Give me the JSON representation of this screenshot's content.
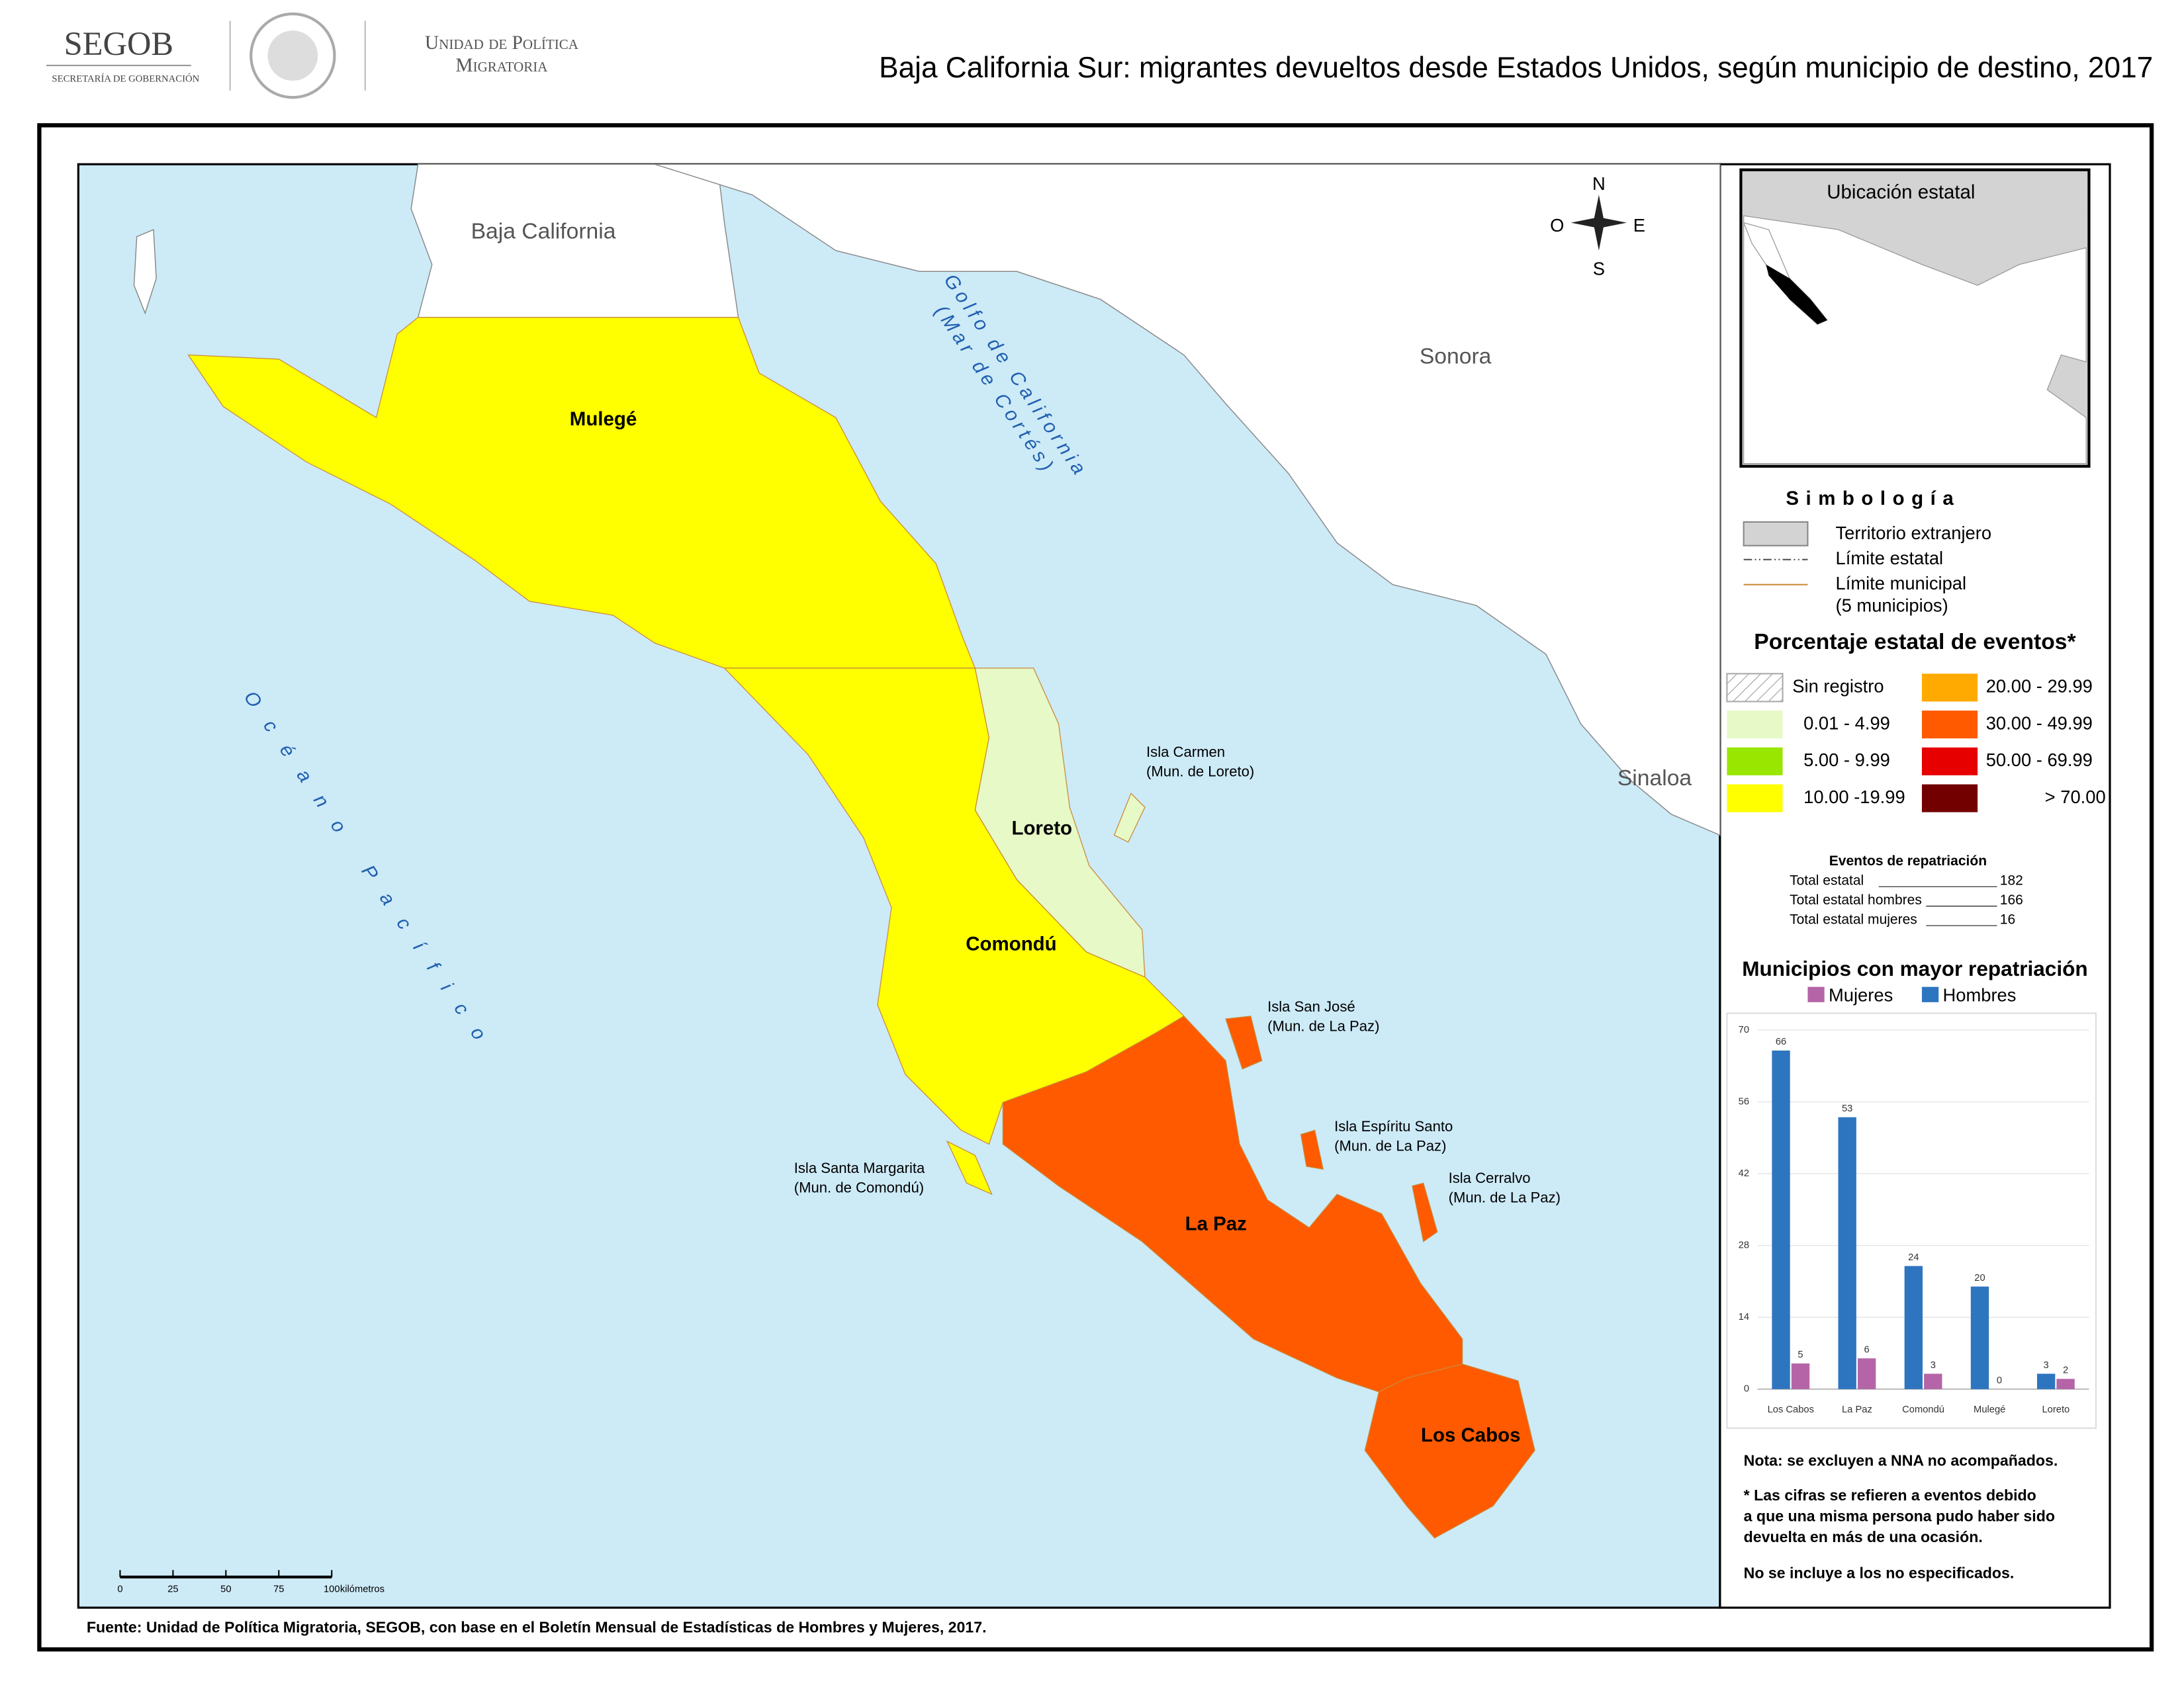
{
  "header": {
    "logo": "SEGOB",
    "logo_subtitle": "SECRETARÍA DE GOBERNACIÓN",
    "unit": [
      "Unidad de Política",
      "Migratoria"
    ],
    "title": "Baja California Sur: migrantes devueltos desde Estados Unidos, según municipio de destino, 2017"
  },
  "map": {
    "neighbors": [
      "Baja California",
      "Sonora",
      "Sinaloa"
    ],
    "gulf": [
      "Golfo de California",
      "(Mar de Cortés)"
    ],
    "ocean": "Océano Pacífico",
    "municipios": [
      {
        "name": "Mulegé",
        "color": "#ffff00"
      },
      {
        "name": "Loreto",
        "color": "#e6f9c6"
      },
      {
        "name": "Comondú",
        "color": "#ffff00"
      },
      {
        "name": "La Paz",
        "color": "#ff5a00"
      },
      {
        "name": "Los Cabos",
        "color": "#ff5a00"
      }
    ],
    "islands": [
      {
        "name": "Isla Carmen",
        "note": "(Mun. de Loreto)"
      },
      {
        "name": "Isla San José",
        "note": "(Mun. de La Paz)"
      },
      {
        "name": "Isla Espíritu Santo",
        "note": "(Mun. de La Paz)"
      },
      {
        "name": "Isla Cerralvo",
        "note": "(Mun. de La Paz)"
      },
      {
        "name": "Isla Santa Margarita",
        "note": "(Mun. de Comondú)"
      }
    ],
    "compass": [
      "N",
      "O",
      "E",
      "S"
    ],
    "scale": {
      "ticks": [
        0,
        25,
        50,
        75,
        100
      ],
      "unit": "kilómetros"
    }
  },
  "inset": {
    "title": "Ubicación estatal"
  },
  "legend": {
    "title": "Simbología",
    "items": [
      "Territorio extranjero",
      "Límite estatal",
      "Límite municipal",
      "(5 municipios)"
    ],
    "classes_title": "Porcentaje estatal de eventos*",
    "classes": [
      {
        "label": "Sin registro"
      },
      {
        "label": "0.01  - 4.99",
        "color": "#e6f9c6"
      },
      {
        "label": "5.00  - 9.99",
        "color": "#99e600"
      },
      {
        "label": "10.00 -19.99",
        "color": "#ffff00"
      },
      {
        "label": "20.00 - 29.99",
        "color": "#ffaa00"
      },
      {
        "label": "30.00 - 49.99",
        "color": "#ff5a00"
      },
      {
        "label": "50.00 - 69.99",
        "color": "#e60000"
      },
      {
        "label": "> 70.00",
        "color": "#730000"
      }
    ]
  },
  "totals": {
    "title": "Eventos de repatriación",
    "rows": [
      {
        "label": "Total estatal",
        "value": 182
      },
      {
        "label": "Total estatal hombres",
        "value": 166
      },
      {
        "label": "Total estatal mujeres",
        "value": 16
      }
    ]
  },
  "chart_data": {
    "type": "bar",
    "title": "Municipios con mayor repatriación",
    "categories": [
      "Los Cabos",
      "La Paz",
      "Comondú",
      "Mulegé",
      "Loreto"
    ],
    "series": [
      {
        "name": "Mujeres",
        "color": "#b565a7",
        "values": [
          5,
          6,
          3,
          0,
          2
        ]
      },
      {
        "name": "Hombres",
        "color": "#2e75c0",
        "values": [
          66,
          53,
          24,
          20,
          3
        ]
      }
    ],
    "ylim": [
      0,
      70
    ],
    "yticks": [
      0,
      14,
      28,
      42,
      56,
      70
    ],
    "grid": true
  },
  "notes": [
    "Nota: se excluyen a NNA no acompañados.",
    "* Las cifras se refieren a eventos debido",
    "a que una misma persona pudo haber sido",
    "devuelta en más de una ocasión.",
    "No se incluye a los no especificados."
  ],
  "source": "Fuente: Unidad de Política Migratoria, SEGOB, con base en el Boletín Mensual de Estadísticas de Hombres y Mujeres, 2017."
}
